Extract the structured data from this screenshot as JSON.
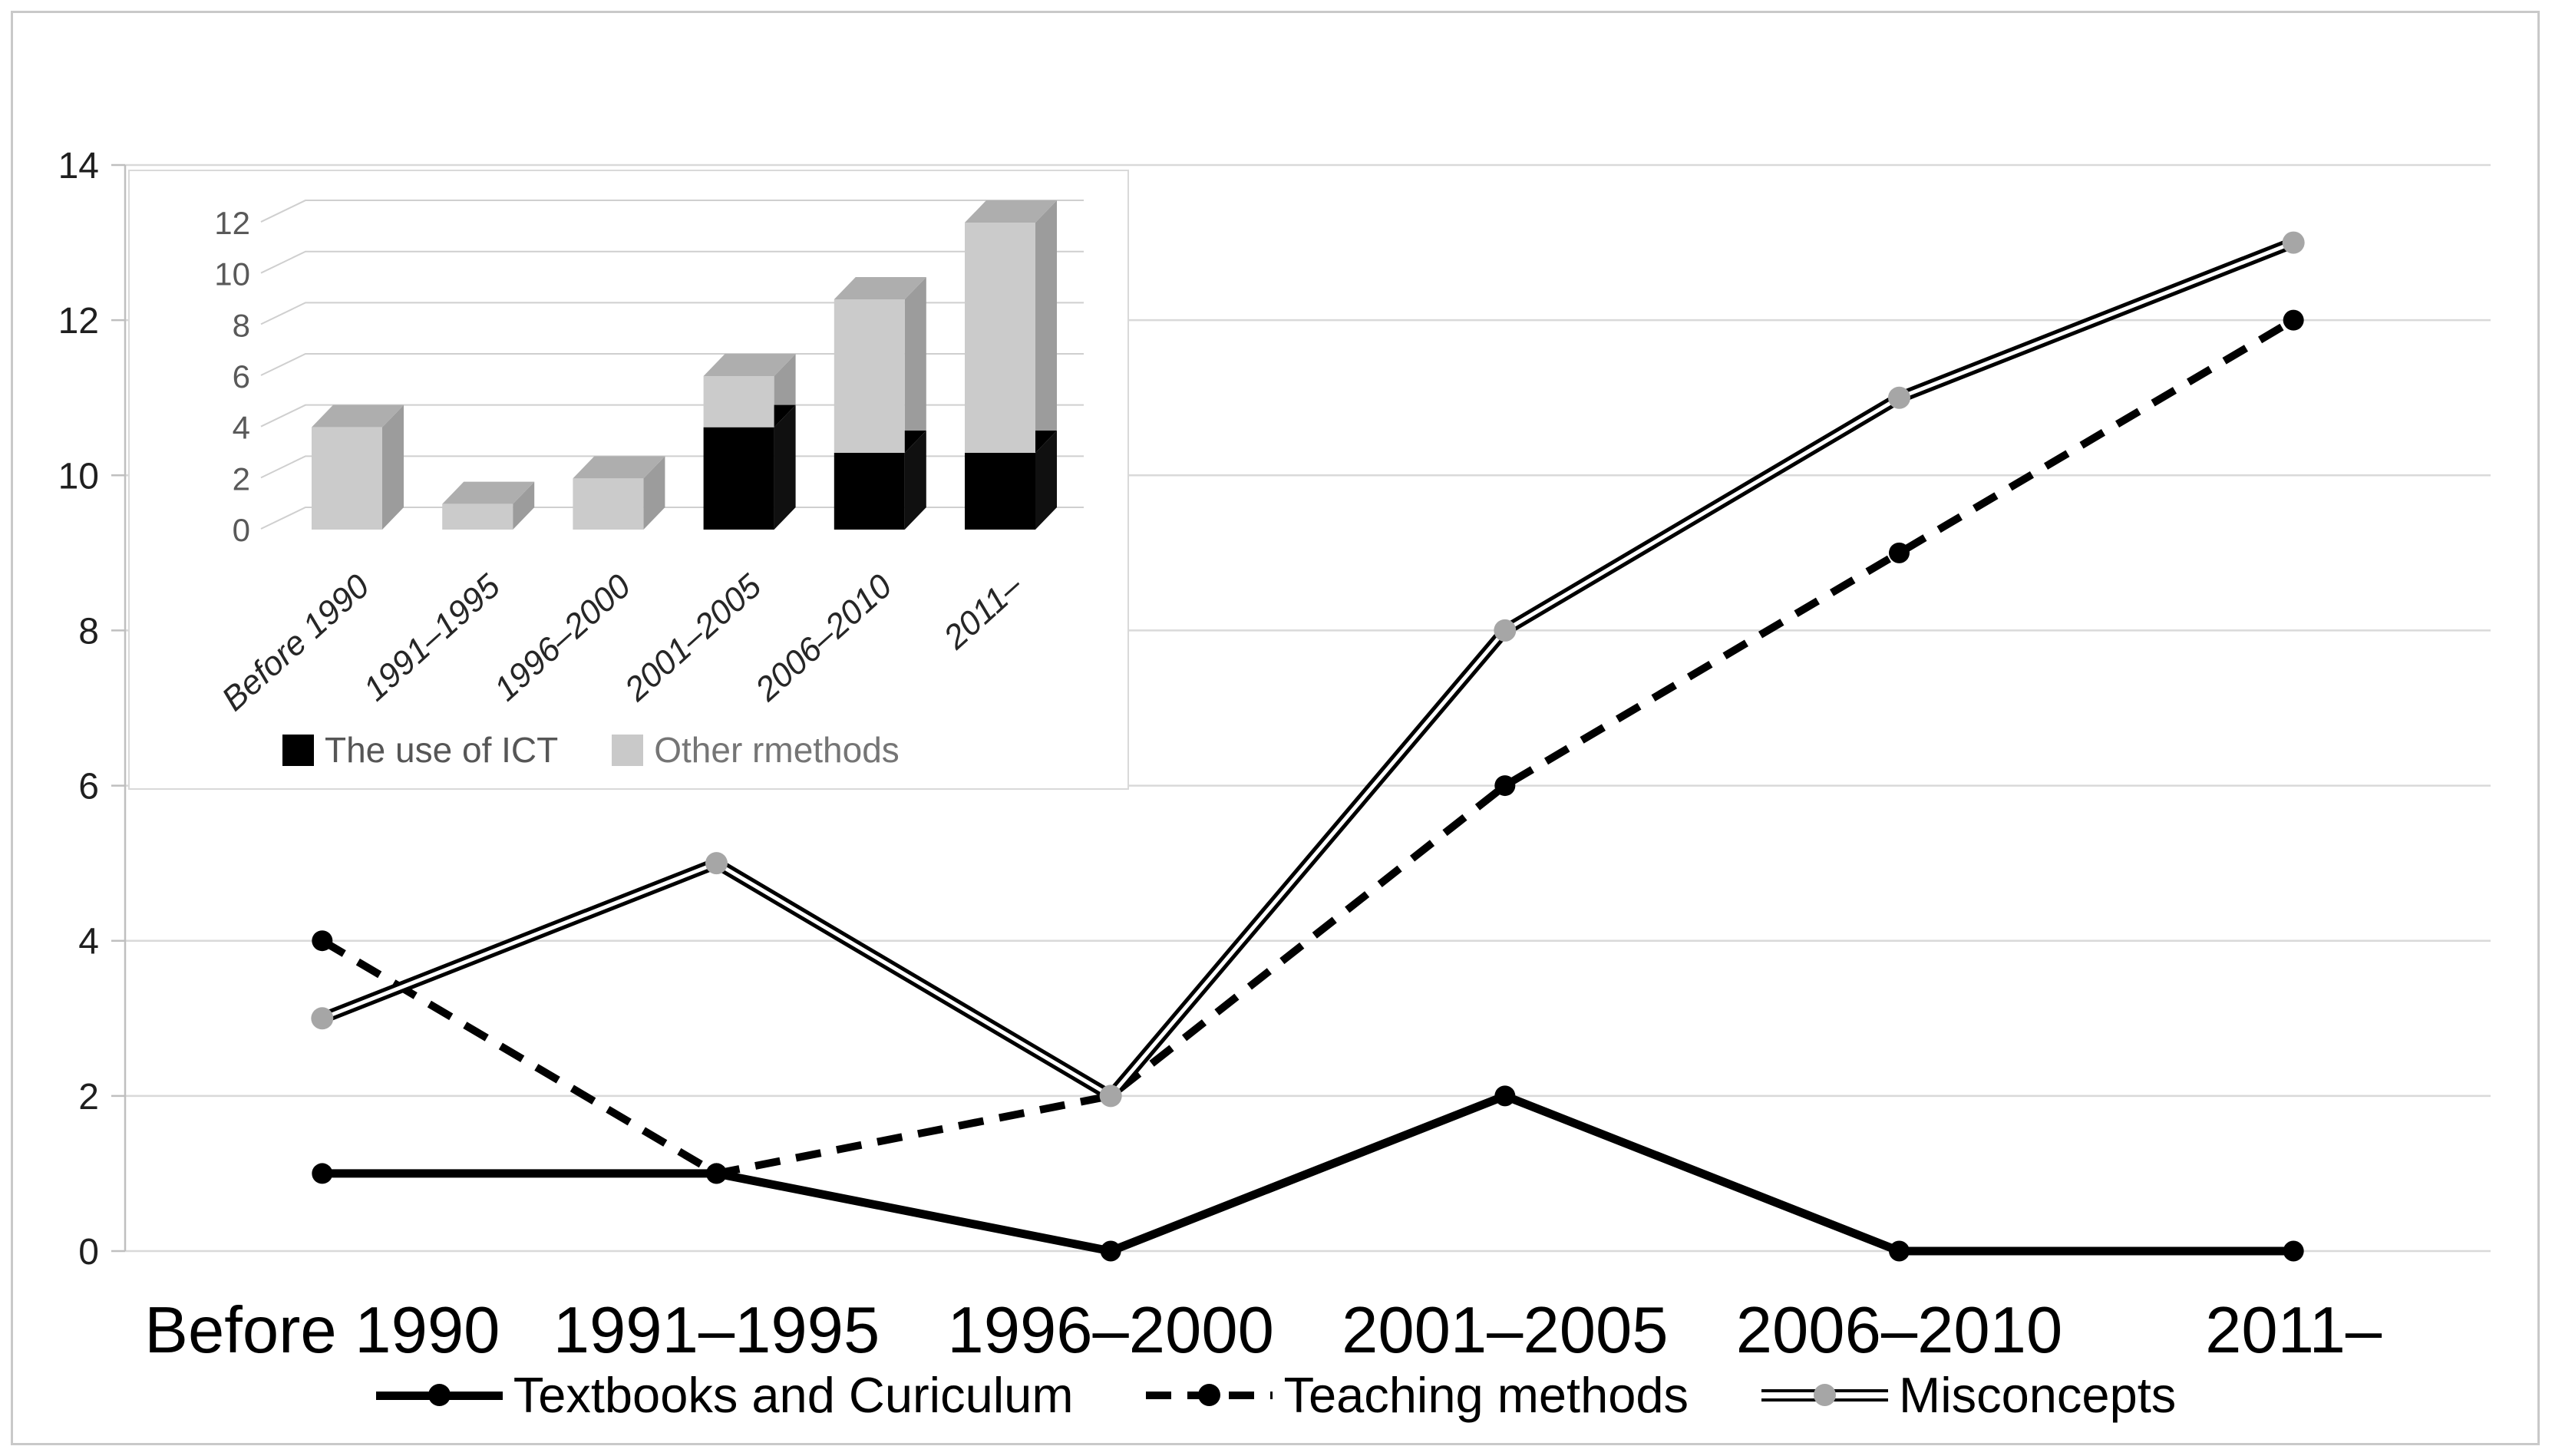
{
  "figure": {
    "background": "#ffffff",
    "frame_color": "#c9c9c9",
    "gridline_color": "#d9d9d9",
    "axis_color": "#bfbfbf"
  },
  "chart_data": [
    {
      "id": "main-line-chart",
      "type": "line",
      "title": "",
      "xlabel": "",
      "ylabel": "",
      "categories": [
        "Before 1990",
        "1991–1995",
        "1996–2000",
        "2001–2005",
        "2006–2010",
        "2011–"
      ],
      "y_ticks": [
        0,
        2,
        4,
        6,
        8,
        10,
        12,
        14
      ],
      "ylim": [
        0,
        14
      ],
      "grid": true,
      "legend_position": "bottom",
      "series": [
        {
          "name": "Textbooks and Curiculum",
          "style": "solid",
          "line_color": "#000000",
          "marker": "circle",
          "marker_color": "#000000",
          "values": [
            1,
            1,
            0,
            2,
            0,
            0
          ]
        },
        {
          "name": "Teaching methods",
          "style": "dashed",
          "line_color": "#000000",
          "marker": "circle",
          "marker_color": "#000000",
          "values": [
            4,
            1,
            2,
            6,
            9,
            12
          ]
        },
        {
          "name": "Misconcepts",
          "style": "double",
          "line_color": "#000000",
          "marker": "circle",
          "marker_color": "#a6a6a6",
          "values": [
            3,
            5,
            2,
            8,
            11,
            13
          ]
        }
      ]
    },
    {
      "id": "inset-stacked-bar-chart",
      "type": "bar",
      "subtype": "stacked-3d",
      "title": "",
      "categories": [
        "Before 1990",
        "1991–1995",
        "1996–2000",
        "2001–2005",
        "2006–2010",
        "2011–"
      ],
      "y_ticks": [
        0,
        2,
        4,
        6,
        8,
        10,
        12
      ],
      "ylim": [
        0,
        12
      ],
      "grid": true,
      "legend_position": "bottom",
      "series": [
        {
          "name": "The use of ICT",
          "color": "#000000",
          "side_color": "#101010",
          "top_color": "#000000",
          "values": [
            0,
            0,
            0,
            4,
            3,
            3
          ]
        },
        {
          "name": "Other rmethods",
          "color": "#cbcbcb",
          "side_color": "#9c9c9c",
          "top_color": "#aeaeae",
          "values": [
            4,
            1,
            2,
            2,
            6,
            9
          ]
        }
      ]
    }
  ]
}
